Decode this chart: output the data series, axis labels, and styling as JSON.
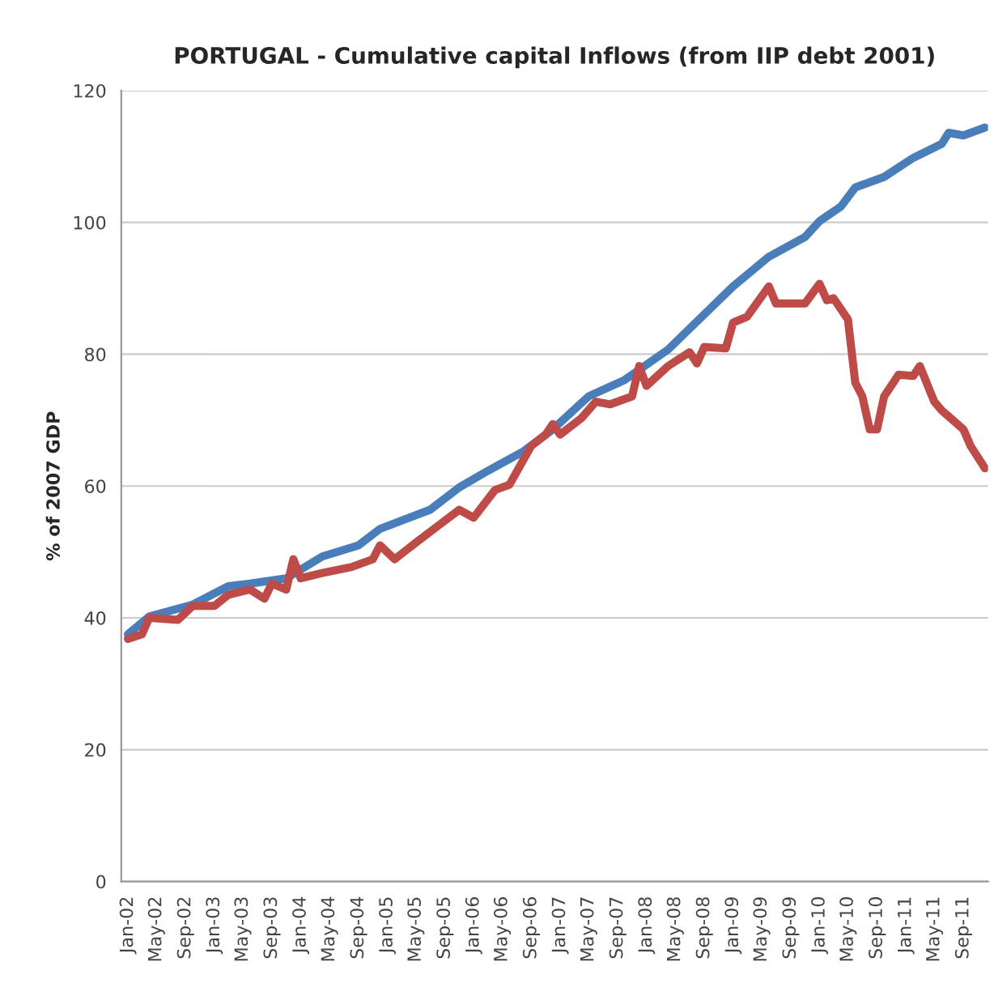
{
  "chart_data": {
    "type": "line",
    "title": "PORTUGAL - Cumulative capital Inflows (from IIP debt 2001)",
    "ylabel": "% of 2007 GDP",
    "series": [
      {
        "color": "#4a7ebb",
        "x": [
          "2002-01",
          "2002-04",
          "2002-10",
          "2003-03",
          "2003-06",
          "2003-11",
          "2004-04",
          "2004-09",
          "2004-12",
          "2005-07",
          "2005-11",
          "2006-03",
          "2006-08",
          "2006-12",
          "2007-05",
          "2007-10",
          "2008-04",
          "2009-01",
          "2009-06",
          "2009-11",
          "2010-01",
          "2010-04",
          "2010-06",
          "2010-10",
          "2011-02",
          "2011-06",
          "2011-07",
          "2011-09",
          "2011-12"
        ],
        "values": [
          37.5,
          40.2,
          42,
          44.8,
          45.2,
          46,
          49.3,
          51,
          53.5,
          56.4,
          59.8,
          62.3,
          65.3,
          68.6,
          73.6,
          76.1,
          80.7,
          90.3,
          94.8,
          97.8,
          100.2,
          102.4,
          105.3,
          106.9,
          109.8,
          111.9,
          113.6,
          113.2,
          114.4
        ]
      },
      {
        "color": "#be4b48",
        "x": [
          "2002-01",
          "2002-03",
          "2002-04",
          "2002-08",
          "2002-10",
          "2003-01",
          "2003-03",
          "2003-06",
          "2003-08",
          "2003-09",
          "2003-11",
          "2003-12",
          "2004-01",
          "2004-04",
          "2004-08",
          "2004-11",
          "2004-12",
          "2005-02",
          "2005-05",
          "2005-08",
          "2005-11",
          "2006-01",
          "2006-04",
          "2006-06",
          "2006-09",
          "2006-11",
          "2006-12",
          "2007-01",
          "2007-04",
          "2007-06",
          "2007-08",
          "2007-11",
          "2007-12",
          "2008-01",
          "2008-04",
          "2008-07",
          "2008-08",
          "2008-09",
          "2008-12",
          "2009-01",
          "2009-03",
          "2009-06",
          "2009-07",
          "2009-11",
          "2010-01",
          "2010-02",
          "2010-03",
          "2010-05",
          "2010-06",
          "2010-07",
          "2010-08",
          "2010-09",
          "2010-10",
          "2010-12",
          "2011-02",
          "2011-03",
          "2011-05",
          "2011-06",
          "2011-09",
          "2011-10",
          "2011-12"
        ],
        "values": [
          36.8,
          37.5,
          40,
          39.7,
          41.8,
          41.8,
          43.5,
          44.3,
          42.9,
          45.2,
          44.3,
          48.9,
          46,
          46.8,
          47.7,
          48.9,
          51,
          48.9,
          51.4,
          53.9,
          56.4,
          55.2,
          59.4,
          60.2,
          66.1,
          67.8,
          69.4,
          67.8,
          70.3,
          72.8,
          72.4,
          73.6,
          78.2,
          75.2,
          78.2,
          80.3,
          78.6,
          81.1,
          80.9,
          84.8,
          85.7,
          90.3,
          87.7,
          87.7,
          90.7,
          88.2,
          88.5,
          85.3,
          75.7,
          73.6,
          68.6,
          68.6,
          73.6,
          76.9,
          76.7,
          78.2,
          72.8,
          71.5,
          68.6,
          66.1,
          62.7
        ]
      }
    ],
    "xlim": [
      "2001-12-04",
      "2011-12-14"
    ],
    "xticks": [
      {
        "value": "2002-01",
        "label": "Jan-02"
      },
      {
        "value": "2002-05",
        "label": "May-02"
      },
      {
        "value": "2002-09",
        "label": "Sep-02"
      },
      {
        "value": "2003-01",
        "label": "Jan-03"
      },
      {
        "value": "2003-05",
        "label": "May-03"
      },
      {
        "value": "2003-09",
        "label": "Sep-03"
      },
      {
        "value": "2004-01",
        "label": "Jan-04"
      },
      {
        "value": "2004-05",
        "label": "May-04"
      },
      {
        "value": "2004-09",
        "label": "Sep-04"
      },
      {
        "value": "2005-01",
        "label": "Jan-05"
      },
      {
        "value": "2005-05",
        "label": "May-05"
      },
      {
        "value": "2005-09",
        "label": "Sep-05"
      },
      {
        "value": "2006-01",
        "label": "Jan-06"
      },
      {
        "value": "2006-05",
        "label": "May-06"
      },
      {
        "value": "2006-09",
        "label": "Sep-06"
      },
      {
        "value": "2007-01",
        "label": "Jan-07"
      },
      {
        "value": "2007-05",
        "label": "May-07"
      },
      {
        "value": "2007-09",
        "label": "Sep-07"
      },
      {
        "value": "2008-01",
        "label": "Jan-08"
      },
      {
        "value": "2008-05",
        "label": "May-08"
      },
      {
        "value": "2008-09",
        "label": "Sep-08"
      },
      {
        "value": "2009-01",
        "label": "Jan-09"
      },
      {
        "value": "2009-05",
        "label": "May-09"
      },
      {
        "value": "2009-09",
        "label": "Sep-09"
      },
      {
        "value": "2010-01",
        "label": "Jan-10"
      },
      {
        "value": "2010-05",
        "label": "May-10"
      },
      {
        "value": "2010-09",
        "label": "Sep-10"
      },
      {
        "value": "2011-01",
        "label": "Jan-11"
      },
      {
        "value": "2011-05",
        "label": "May-11"
      },
      {
        "value": "2011-09",
        "label": "Sep-11"
      }
    ],
    "ylim": [
      0,
      120
    ],
    "yticks": [
      0,
      20,
      40,
      60,
      80,
      100,
      120
    ],
    "grid": "y",
    "legend": false,
    "marker": "none",
    "line_style": "solid"
  }
}
